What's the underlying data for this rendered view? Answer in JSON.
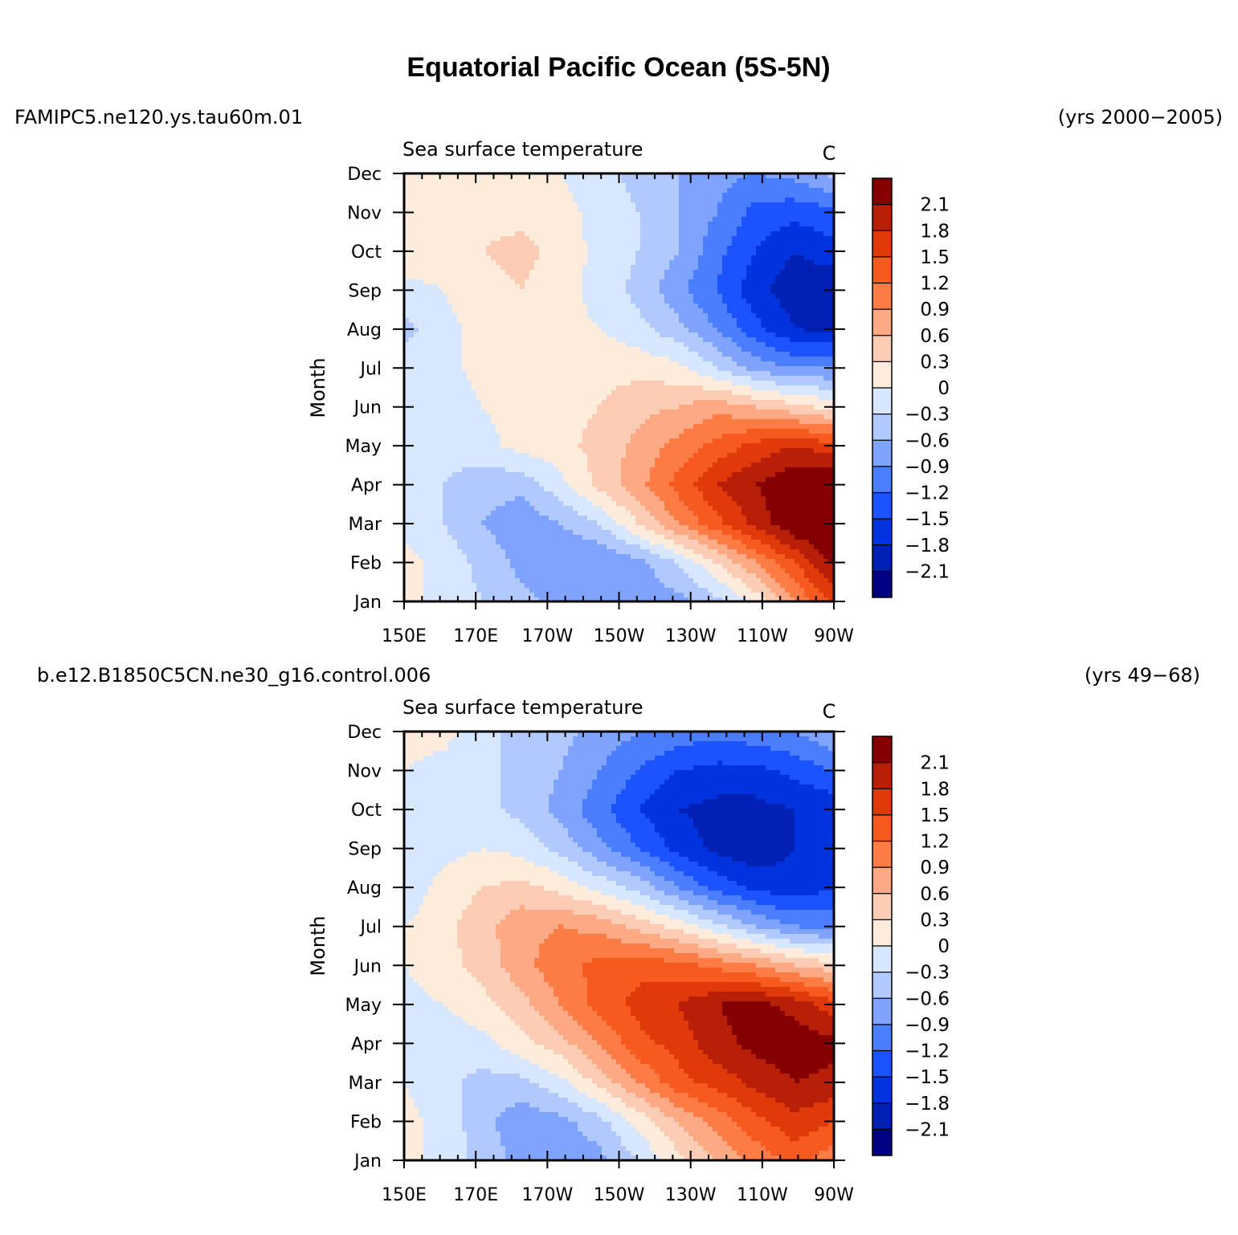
{
  "title": "Equatorial Pacific Ocean (5S-5N)",
  "colors": [
    "#000080",
    "#0021b4",
    "#0033dd",
    "#1a53ff",
    "#4a7dff",
    "#7fa4ff",
    "#b1c9ff",
    "#d7e7ff",
    "#fdebdc",
    "#fdccb4",
    "#fda983",
    "#fd7c46",
    "#f75a1e",
    "#e03a0a",
    "#b71f06",
    "#850000"
  ],
  "chart_data": [
    {
      "type": "contour",
      "case_label": "FAMIPC5.ne120.ys.tau60m.01",
      "years_label": "(yrs 2000−2005)",
      "left_string": "Sea surface temperature",
      "units": "C",
      "ylabel": "Month",
      "x_ticks": [
        "150E",
        "170E",
        "170W",
        "150W",
        "130W",
        "110W",
        "90W"
      ],
      "x_values": [
        150,
        170,
        190,
        210,
        230,
        250,
        270
      ],
      "xlim": [
        150,
        270
      ],
      "y_ticks": [
        "Jan",
        "Feb",
        "Mar",
        "Apr",
        "May",
        "Jun",
        "Jul",
        "Aug",
        "Sep",
        "Oct",
        "Nov",
        "Dec"
      ],
      "levels": [
        "2.1",
        "1.8",
        "1.5",
        "1.2",
        "0.9",
        "0.6",
        "0.3",
        "0",
        "−0.3",
        "−0.6",
        "−0.9",
        "−1.2",
        "−1.5",
        "−1.8",
        "−2.1"
      ],
      "field": [
        [
          0.1,
          -0.1,
          -0.3,
          -0.5,
          -0.7,
          -0.8,
          -0.8,
          -0.7,
          -0.4,
          0.1,
          0.9,
          1.6
        ],
        [
          0.1,
          -0.1,
          -0.4,
          -0.7,
          -0.9,
          -0.9,
          -0.7,
          -0.3,
          0.3,
          0.9,
          1.5,
          2.2
        ],
        [
          -0.1,
          -0.3,
          -0.6,
          -0.8,
          -0.6,
          -0.3,
          0.3,
          0.9,
          1.4,
          1.9,
          2.4,
          2.5
        ],
        [
          0.0,
          -0.3,
          -0.5,
          -0.5,
          -0.1,
          0.4,
          0.8,
          1.3,
          1.8,
          2.1,
          2.4,
          2.5
        ],
        [
          -0.1,
          -0.2,
          -0.1,
          0.1,
          0.2,
          0.4,
          0.7,
          1.0,
          1.3,
          1.6,
          1.8,
          1.6
        ],
        [
          -0.1,
          -0.2,
          0.0,
          0.1,
          0.2,
          0.3,
          0.5,
          0.6,
          0.8,
          0.6,
          0.4,
          0.2
        ],
        [
          -0.1,
          -0.1,
          0.1,
          0.1,
          0.2,
          0.2,
          0.2,
          0.1,
          -0.3,
          -0.7,
          -0.9,
          -0.9
        ],
        [
          -0.4,
          -0.1,
          0.1,
          0.2,
          0.1,
          0.0,
          -0.2,
          -0.5,
          -0.9,
          -1.4,
          -1.8,
          -1.9
        ],
        [
          -0.1,
          0.0,
          0.2,
          0.3,
          0.1,
          -0.1,
          -0.4,
          -0.8,
          -1.2,
          -1.7,
          -2.0,
          -2.1
        ],
        [
          0.2,
          0.2,
          0.3,
          0.4,
          0.2,
          -0.1,
          -0.3,
          -0.6,
          -1.1,
          -1.5,
          -1.8,
          -1.6
        ],
        [
          0.2,
          0.2,
          0.2,
          0.2,
          0.1,
          -0.1,
          -0.3,
          -0.6,
          -0.9,
          -1.3,
          -1.4,
          -1.3
        ],
        [
          0.1,
          0.2,
          0.2,
          0.1,
          0.0,
          -0.2,
          -0.4,
          -0.6,
          -0.8,
          -0.9,
          -0.8,
          -0.5
        ]
      ]
    },
    {
      "type": "contour",
      "case_label": "b.e12.B1850C5CN.ne30_g16.control.006",
      "years_label": "(yrs 49−68)",
      "left_string": "Sea surface temperature",
      "units": "C",
      "ylabel": "Month",
      "x_ticks": [
        "150E",
        "170E",
        "170W",
        "150W",
        "130W",
        "110W",
        "90W"
      ],
      "x_values": [
        150,
        170,
        190,
        210,
        230,
        250,
        270
      ],
      "xlim": [
        150,
        270
      ],
      "y_ticks": [
        "Jan",
        "Feb",
        "Mar",
        "Apr",
        "May",
        "Jun",
        "Jul",
        "Aug",
        "Sep",
        "Oct",
        "Nov",
        "Dec"
      ],
      "levels": [
        "2.1",
        "1.8",
        "1.5",
        "1.2",
        "0.9",
        "0.6",
        "0.3",
        "0",
        "−0.3",
        "−0.6",
        "−0.9",
        "−1.2",
        "−1.5",
        "−1.8",
        "−2.1"
      ],
      "field": [
        [
          0.1,
          -0.1,
          -0.4,
          -0.7,
          -0.9,
          -0.7,
          -0.3,
          0.2,
          0.6,
          1.0,
          1.3,
          1.0
        ],
        [
          0.1,
          -0.1,
          -0.5,
          -0.8,
          -0.7,
          -0.4,
          0.1,
          0.6,
          1.0,
          1.4,
          1.7,
          1.5
        ],
        [
          0.0,
          -0.2,
          -0.4,
          -0.4,
          -0.1,
          0.4,
          0.9,
          1.4,
          1.6,
          1.9,
          2.1,
          2.0
        ],
        [
          -0.1,
          -0.2,
          -0.1,
          0.2,
          0.5,
          0.9,
          1.4,
          1.6,
          2.0,
          2.2,
          2.3,
          2.2
        ],
        [
          -0.1,
          0.0,
          0.2,
          0.5,
          0.9,
          1.3,
          1.6,
          1.8,
          2.1,
          2.2,
          2.0,
          1.6
        ],
        [
          0.0,
          0.2,
          0.4,
          0.8,
          1.1,
          1.3,
          1.4,
          1.3,
          1.1,
          0.9,
          0.6,
          0.4
        ],
        [
          0.0,
          0.2,
          0.5,
          0.8,
          0.9,
          0.8,
          0.5,
          0.2,
          -0.2,
          -0.6,
          -0.9,
          -1.0
        ],
        [
          -0.2,
          0.1,
          0.3,
          0.4,
          0.2,
          -0.1,
          -0.4,
          -0.9,
          -1.3,
          -1.6,
          -1.7,
          -1.5
        ],
        [
          -0.2,
          -0.1,
          0.0,
          -0.1,
          -0.4,
          -0.8,
          -1.2,
          -1.6,
          -1.9,
          -2.0,
          -1.8,
          -1.6
        ],
        [
          -0.1,
          -0.2,
          -0.2,
          -0.4,
          -0.7,
          -1.1,
          -1.5,
          -1.8,
          -1.9,
          -1.9,
          -1.8,
          -1.7
        ],
        [
          0.0,
          -0.1,
          -0.2,
          -0.4,
          -0.6,
          -0.9,
          -1.2,
          -1.5,
          -1.6,
          -1.6,
          -1.4,
          -1.2
        ],
        [
          0.1,
          0.1,
          -0.2,
          -0.4,
          -0.5,
          -0.7,
          -0.9,
          -1.0,
          -1.1,
          -1.0,
          -0.9,
          -0.6
        ]
      ]
    }
  ]
}
